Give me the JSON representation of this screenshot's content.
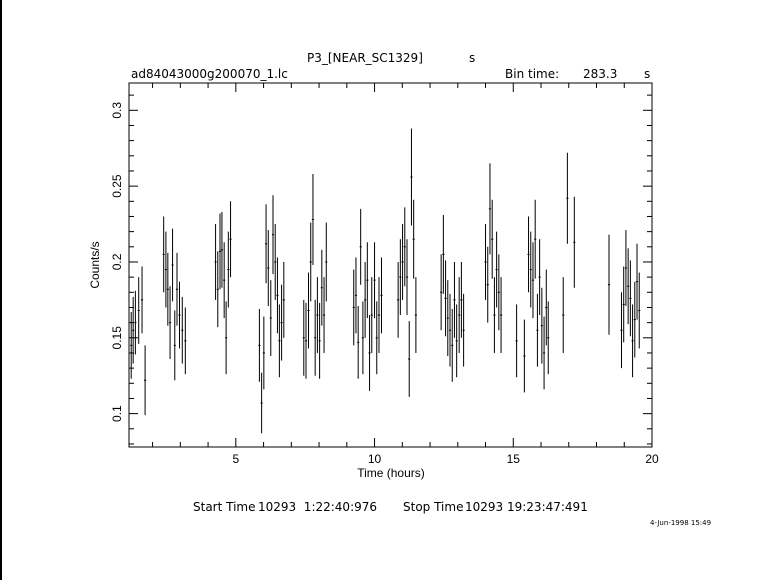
{
  "header": {
    "title": "P3_[NEAR_SC1329]",
    "title_unit": "s",
    "filename": "ad84043000g200070_1.lc",
    "bin_label": "Bin time:",
    "bin_value": "283.3",
    "bin_unit": "s"
  },
  "footer": {
    "start_label": "Start Time",
    "start_value": "10293  1:22:40:976",
    "stop_label": "Stop Time",
    "stop_value": "10293 19:23:47:491",
    "stamp": "4-Jun-1998 15:49"
  },
  "chart_data": {
    "type": "scatter",
    "title": "P3_[NEAR_SC1329]",
    "xlabel": "Time (hours)",
    "ylabel": "Counts/s",
    "xlim": [
      1.15,
      20.0
    ],
    "ylim": [
      0.078,
      0.318
    ],
    "xticks": [
      5,
      10,
      15,
      20
    ],
    "yticks": [
      0.1,
      0.15,
      0.2,
      0.25,
      0.3
    ],
    "grid": false,
    "bin_time_s": 283.3,
    "x_err": 0.039,
    "points": [
      [
        1.23,
        0.145,
        0.022
      ],
      [
        1.3,
        0.155,
        0.022
      ],
      [
        1.38,
        0.16,
        0.021
      ],
      [
        1.5,
        0.168,
        0.022
      ],
      [
        1.62,
        0.175,
        0.022
      ],
      [
        1.73,
        0.122,
        0.023
      ],
      [
        2.4,
        0.205,
        0.025
      ],
      [
        2.48,
        0.195,
        0.025
      ],
      [
        2.55,
        0.182,
        0.024
      ],
      [
        2.63,
        0.16,
        0.024
      ],
      [
        2.72,
        0.198,
        0.024
      ],
      [
        2.8,
        0.145,
        0.023
      ],
      [
        2.88,
        0.182,
        0.024
      ],
      [
        2.97,
        0.165,
        0.022
      ],
      [
        3.07,
        0.155,
        0.022
      ],
      [
        3.18,
        0.148,
        0.022
      ],
      [
        4.27,
        0.2,
        0.025
      ],
      [
        4.35,
        0.182,
        0.025
      ],
      [
        4.43,
        0.207,
        0.025
      ],
      [
        4.5,
        0.208,
        0.025
      ],
      [
        4.58,
        0.188,
        0.025
      ],
      [
        4.65,
        0.15,
        0.024
      ],
      [
        4.73,
        0.195,
        0.025
      ],
      [
        4.81,
        0.215,
        0.025
      ],
      [
        5.85,
        0.145,
        0.024
      ],
      [
        5.93,
        0.107,
        0.02
      ],
      [
        6.01,
        0.14,
        0.024
      ],
      [
        6.09,
        0.212,
        0.026
      ],
      [
        6.17,
        0.196,
        0.025
      ],
      [
        6.26,
        0.163,
        0.025
      ],
      [
        6.34,
        0.218,
        0.026
      ],
      [
        6.42,
        0.2,
        0.025
      ],
      [
        6.5,
        0.178,
        0.025
      ],
      [
        6.57,
        0.148,
        0.024
      ],
      [
        6.65,
        0.16,
        0.025
      ],
      [
        6.73,
        0.175,
        0.025
      ],
      [
        7.45,
        0.15,
        0.025
      ],
      [
        7.53,
        0.148,
        0.025
      ],
      [
        7.62,
        0.168,
        0.025
      ],
      [
        7.7,
        0.2,
        0.026
      ],
      [
        7.78,
        0.228,
        0.03
      ],
      [
        7.86,
        0.15,
        0.025
      ],
      [
        7.94,
        0.165,
        0.025
      ],
      [
        8.02,
        0.148,
        0.025
      ],
      [
        8.1,
        0.183,
        0.025
      ],
      [
        8.18,
        0.165,
        0.025
      ],
      [
        8.26,
        0.2,
        0.026
      ],
      [
        9.25,
        0.17,
        0.025
      ],
      [
        9.33,
        0.178,
        0.025
      ],
      [
        9.41,
        0.147,
        0.024
      ],
      [
        9.5,
        0.21,
        0.025
      ],
      [
        9.58,
        0.15,
        0.024
      ],
      [
        9.66,
        0.175,
        0.025
      ],
      [
        9.74,
        0.188,
        0.025
      ],
      [
        9.82,
        0.14,
        0.025
      ],
      [
        9.9,
        0.165,
        0.025
      ],
      [
        10.0,
        0.188,
        0.025
      ],
      [
        10.08,
        0.15,
        0.024
      ],
      [
        10.16,
        0.165,
        0.025
      ],
      [
        10.25,
        0.178,
        0.025
      ],
      [
        10.85,
        0.175,
        0.025
      ],
      [
        10.93,
        0.19,
        0.025
      ],
      [
        11.01,
        0.2,
        0.025
      ],
      [
        11.09,
        0.21,
        0.026
      ],
      [
        11.17,
        0.19,
        0.025
      ],
      [
        11.25,
        0.136,
        0.025
      ],
      [
        11.33,
        0.256,
        0.032
      ],
      [
        11.41,
        0.215,
        0.026
      ],
      [
        11.49,
        0.165,
        0.025
      ],
      [
        12.4,
        0.18,
        0.025
      ],
      [
        12.48,
        0.205,
        0.026
      ],
      [
        12.56,
        0.176,
        0.025
      ],
      [
        12.64,
        0.163,
        0.025
      ],
      [
        12.72,
        0.155,
        0.024
      ],
      [
        12.8,
        0.145,
        0.024
      ],
      [
        12.88,
        0.175,
        0.025
      ],
      [
        12.96,
        0.148,
        0.024
      ],
      [
        13.05,
        0.165,
        0.025
      ],
      [
        13.13,
        0.175,
        0.025
      ],
      [
        13.21,
        0.155,
        0.024
      ],
      [
        14.0,
        0.2,
        0.025
      ],
      [
        14.08,
        0.185,
        0.025
      ],
      [
        14.16,
        0.235,
        0.03
      ],
      [
        14.24,
        0.215,
        0.026
      ],
      [
        14.32,
        0.165,
        0.025
      ],
      [
        14.4,
        0.195,
        0.025
      ],
      [
        14.48,
        0.18,
        0.025
      ],
      [
        14.56,
        0.165,
        0.025
      ],
      [
        15.12,
        0.148,
        0.024
      ],
      [
        15.4,
        0.138,
        0.024
      ],
      [
        15.55,
        0.205,
        0.025
      ],
      [
        15.63,
        0.195,
        0.025
      ],
      [
        15.71,
        0.188,
        0.025
      ],
      [
        15.79,
        0.215,
        0.026
      ],
      [
        15.87,
        0.155,
        0.024
      ],
      [
        15.95,
        0.19,
        0.025
      ],
      [
        16.03,
        0.158,
        0.025
      ],
      [
        16.11,
        0.14,
        0.024
      ],
      [
        16.19,
        0.17,
        0.025
      ],
      [
        16.26,
        0.15,
        0.024
      ],
      [
        16.8,
        0.165,
        0.025
      ],
      [
        16.95,
        0.242,
        0.03
      ],
      [
        17.2,
        0.213,
        0.03
      ],
      [
        18.45,
        0.185,
        0.033
      ],
      [
        18.9,
        0.155,
        0.025
      ],
      [
        18.98,
        0.172,
        0.025
      ],
      [
        19.06,
        0.196,
        0.025
      ],
      [
        19.14,
        0.184,
        0.025
      ],
      [
        19.22,
        0.176,
        0.025
      ],
      [
        19.3,
        0.148,
        0.024
      ],
      [
        19.38,
        0.162,
        0.025
      ],
      [
        19.46,
        0.187,
        0.025
      ],
      [
        19.54,
        0.168,
        0.025
      ]
    ]
  }
}
